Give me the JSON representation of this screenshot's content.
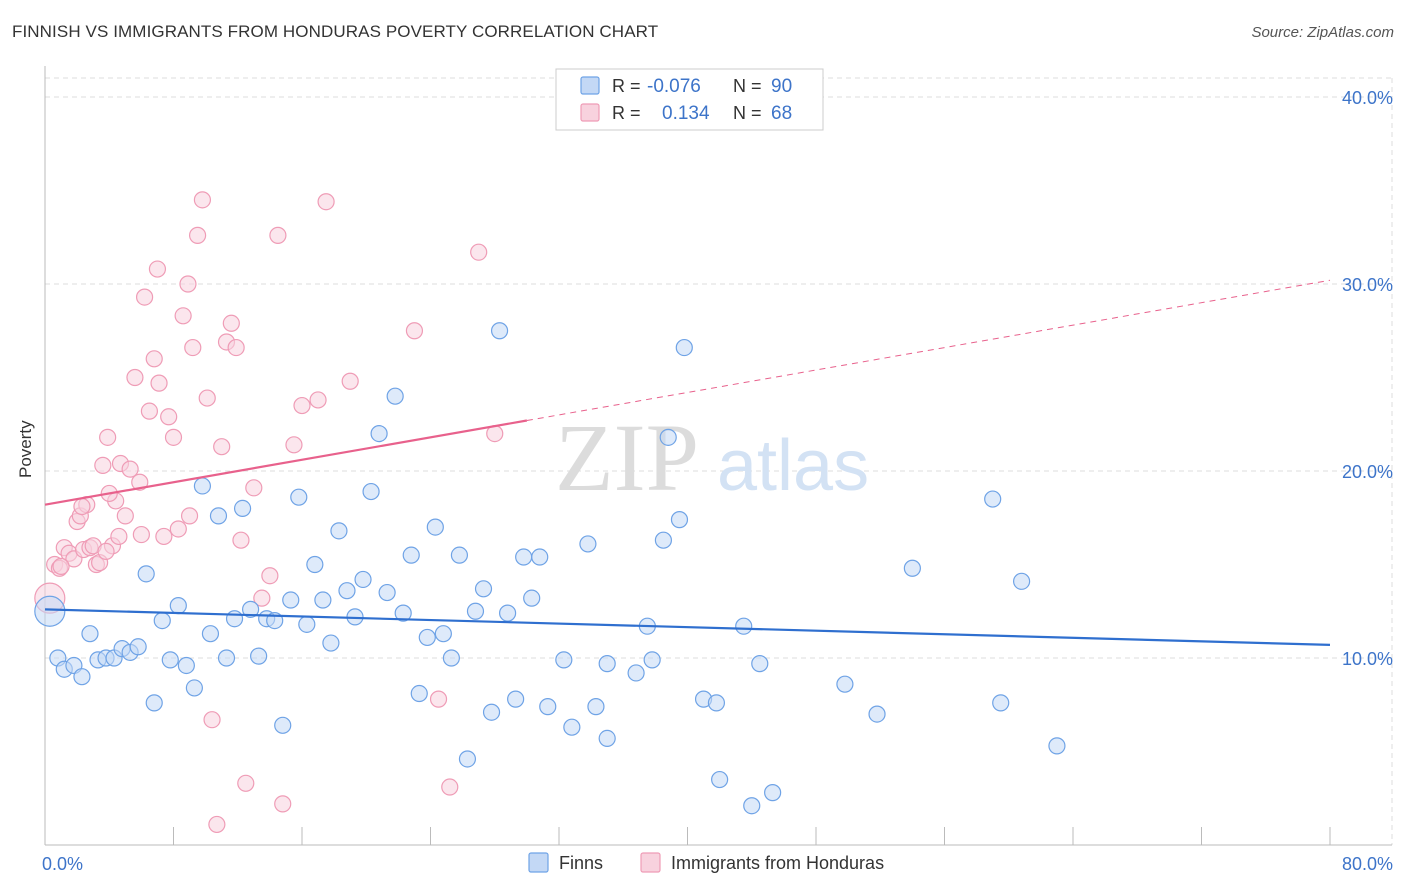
{
  "header": {
    "title": "FINNISH VS IMMIGRANTS FROM HONDURAS POVERTY CORRELATION CHART",
    "source": "Source: ZipAtlas.com"
  },
  "watermark": {
    "zip": "ZIP",
    "atlas": "atlas"
  },
  "colors": {
    "finns": "#6fa3e6",
    "finns_fill": "#c3d8f5",
    "finns_line": "#2f6fcf",
    "honduras": "#ef9cb6",
    "honduras_fill": "#f8d2de",
    "honduras_line": "#e8618c",
    "tick_label": "#3d74c9",
    "grid": "#dddddd"
  },
  "chart_data": {
    "type": "scatter",
    "title": "FINNISH VS IMMIGRANTS FROM HONDURAS POVERTY CORRELATION CHART",
    "xlabel": "",
    "ylabel": "Poverty",
    "xlim": [
      0,
      80
    ],
    "ylim": [
      0,
      40
    ],
    "x_tick_labels": [
      "0.0%",
      "80.0%"
    ],
    "y_ticks": [
      10,
      20,
      30,
      40
    ],
    "y_tick_labels": [
      "10.0%",
      "20.0%",
      "30.0%",
      "40.0%"
    ],
    "grid": true,
    "legend_position": "top-center",
    "legend": [
      {
        "name": "Finns",
        "r_label": "R =",
        "r_value": "-0.076",
        "n_label": "N =",
        "n_value": "90"
      },
      {
        "name": "Immigrants from Honduras",
        "r_label": "R =",
        "r_value": "0.134",
        "n_label": "N =",
        "n_value": "68"
      }
    ],
    "series": [
      {
        "name": "Finns",
        "trend": {
          "x": [
            0,
            80
          ],
          "y": [
            12.6,
            10.7
          ]
        },
        "points": [
          [
            0.3,
            12.5
          ],
          [
            0.8,
            10.0
          ],
          [
            1.2,
            9.4
          ],
          [
            1.8,
            9.6
          ],
          [
            2.3,
            9.0
          ],
          [
            2.8,
            11.3
          ],
          [
            3.3,
            9.9
          ],
          [
            3.8,
            10.0
          ],
          [
            4.3,
            10.0
          ],
          [
            4.8,
            10.5
          ],
          [
            5.3,
            10.3
          ],
          [
            5.8,
            10.6
          ],
          [
            6.3,
            14.5
          ],
          [
            6.8,
            7.6
          ],
          [
            7.3,
            12.0
          ],
          [
            7.8,
            9.9
          ],
          [
            8.3,
            12.8
          ],
          [
            8.8,
            9.6
          ],
          [
            9.3,
            8.4
          ],
          [
            9.8,
            19.2
          ],
          [
            10.3,
            11.3
          ],
          [
            10.8,
            17.6
          ],
          [
            11.3,
            10.0
          ],
          [
            11.8,
            12.1
          ],
          [
            12.3,
            18.0
          ],
          [
            12.8,
            12.6
          ],
          [
            13.3,
            10.1
          ],
          [
            13.8,
            12.1
          ],
          [
            14.3,
            12.0
          ],
          [
            14.8,
            6.4
          ],
          [
            15.3,
            13.1
          ],
          [
            15.8,
            18.6
          ],
          [
            16.3,
            11.8
          ],
          [
            16.8,
            15.0
          ],
          [
            17.3,
            13.1
          ],
          [
            17.8,
            10.8
          ],
          [
            18.3,
            16.8
          ],
          [
            18.8,
            13.6
          ],
          [
            19.3,
            12.2
          ],
          [
            19.8,
            14.2
          ],
          [
            20.3,
            18.9
          ],
          [
            20.8,
            22.0
          ],
          [
            21.3,
            13.5
          ],
          [
            21.8,
            24.0
          ],
          [
            22.3,
            12.4
          ],
          [
            22.8,
            15.5
          ],
          [
            23.3,
            8.1
          ],
          [
            23.8,
            11.1
          ],
          [
            24.3,
            17.0
          ],
          [
            24.8,
            11.3
          ],
          [
            25.3,
            10.0
          ],
          [
            25.8,
            15.5
          ],
          [
            26.3,
            4.6
          ],
          [
            26.8,
            12.5
          ],
          [
            27.3,
            13.7
          ],
          [
            27.8,
            7.1
          ],
          [
            28.3,
            27.5
          ],
          [
            28.8,
            12.4
          ],
          [
            29.3,
            7.8
          ],
          [
            29.8,
            15.4
          ],
          [
            30.3,
            13.2
          ],
          [
            30.8,
            15.4
          ],
          [
            31.3,
            7.4
          ],
          [
            32.3,
            9.9
          ],
          [
            32.8,
            6.3
          ],
          [
            33.8,
            16.1
          ],
          [
            34.3,
            7.4
          ],
          [
            35.0,
            9.7
          ],
          [
            35.0,
            5.7
          ],
          [
            36.8,
            9.2
          ],
          [
            37.5,
            11.7
          ],
          [
            37.8,
            9.9
          ],
          [
            38.5,
            16.3
          ],
          [
            38.8,
            21.8
          ],
          [
            39.5,
            17.4
          ],
          [
            39.8,
            26.6
          ],
          [
            41.0,
            7.8
          ],
          [
            41.8,
            7.6
          ],
          [
            42.0,
            3.5
          ],
          [
            43.5,
            11.7
          ],
          [
            44.0,
            2.1
          ],
          [
            44.5,
            9.7
          ],
          [
            45.3,
            2.8
          ],
          [
            49.8,
            8.6
          ],
          [
            51.8,
            7.0
          ],
          [
            54.0,
            14.8
          ],
          [
            59.0,
            18.5
          ],
          [
            59.5,
            7.6
          ],
          [
            60.8,
            14.1
          ],
          [
            63.0,
            5.3
          ]
        ]
      },
      {
        "name": "Immigrants from Honduras",
        "trend": {
          "x": [
            0,
            30
          ],
          "y": [
            18.2,
            22.7
          ]
        },
        "trend_dashed": {
          "x": [
            30,
            80
          ],
          "y": [
            22.7,
            30.2
          ]
        },
        "points": [
          [
            0.3,
            13.2
          ],
          [
            0.6,
            15.0
          ],
          [
            0.9,
            14.8
          ],
          [
            1.2,
            15.9
          ],
          [
            1.5,
            15.6
          ],
          [
            1.8,
            15.3
          ],
          [
            2.0,
            17.3
          ],
          [
            2.2,
            17.6
          ],
          [
            2.4,
            15.8
          ],
          [
            2.6,
            18.2
          ],
          [
            2.8,
            15.9
          ],
          [
            3.0,
            16.0
          ],
          [
            3.2,
            15.0
          ],
          [
            3.4,
            15.1
          ],
          [
            3.6,
            20.3
          ],
          [
            3.9,
            21.8
          ],
          [
            4.2,
            16.0
          ],
          [
            4.4,
            18.4
          ],
          [
            4.7,
            20.4
          ],
          [
            5.0,
            17.6
          ],
          [
            5.3,
            20.1
          ],
          [
            5.6,
            25.0
          ],
          [
            5.9,
            19.4
          ],
          [
            6.2,
            29.3
          ],
          [
            6.5,
            23.2
          ],
          [
            6.8,
            26.0
          ],
          [
            7.1,
            24.7
          ],
          [
            7.4,
            16.5
          ],
          [
            7.7,
            22.9
          ],
          [
            8.0,
            21.8
          ],
          [
            8.3,
            16.9
          ],
          [
            8.6,
            28.3
          ],
          [
            8.9,
            30.0
          ],
          [
            9.2,
            26.6
          ],
          [
            9.5,
            32.6
          ],
          [
            9.8,
            34.5
          ],
          [
            10.1,
            23.9
          ],
          [
            10.4,
            6.7
          ],
          [
            10.7,
            1.1
          ],
          [
            11.0,
            21.3
          ],
          [
            11.3,
            26.9
          ],
          [
            11.6,
            27.9
          ],
          [
            11.9,
            26.6
          ],
          [
            12.2,
            16.3
          ],
          [
            12.5,
            3.3
          ],
          [
            13.0,
            19.1
          ],
          [
            13.5,
            13.2
          ],
          [
            14.0,
            14.4
          ],
          [
            14.5,
            32.6
          ],
          [
            14.8,
            2.2
          ],
          [
            15.5,
            21.4
          ],
          [
            16.0,
            23.5
          ],
          [
            17.0,
            23.8
          ],
          [
            17.5,
            34.4
          ],
          [
            19.0,
            24.8
          ],
          [
            23.0,
            27.5
          ],
          [
            24.5,
            7.8
          ],
          [
            25.2,
            3.1
          ],
          [
            27.0,
            31.7
          ],
          [
            28.0,
            22.0
          ],
          [
            6.0,
            16.6
          ],
          [
            4.6,
            16.5
          ],
          [
            3.8,
            15.7
          ],
          [
            2.3,
            18.1
          ],
          [
            1.0,
            14.9
          ],
          [
            7.0,
            30.8
          ],
          [
            9.0,
            17.6
          ],
          [
            4.0,
            18.8
          ]
        ]
      }
    ]
  }
}
